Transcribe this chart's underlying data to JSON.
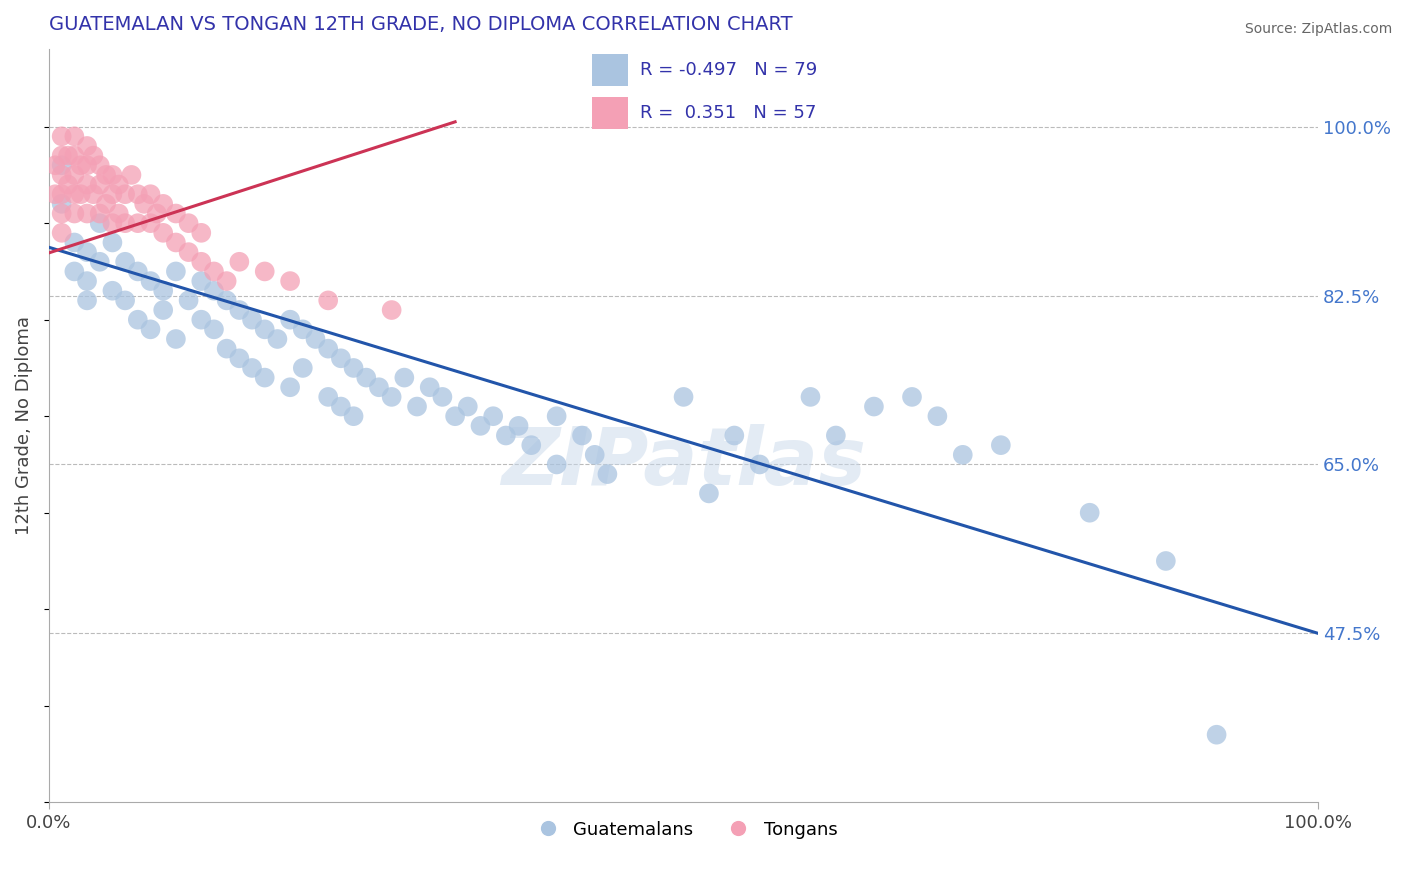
{
  "title": "GUATEMALAN VS TONGAN 12TH GRADE, NO DIPLOMA CORRELATION CHART",
  "source_text": "Source: ZipAtlas.com",
  "ylabel": "12th Grade, No Diploma",
  "y_tick_labels": [
    "47.5%",
    "65.0%",
    "82.5%",
    "100.0%"
  ],
  "y_tick_values": [
    0.475,
    0.65,
    0.825,
    1.0
  ],
  "xlim": [
    0.0,
    1.0
  ],
  "ylim": [
    0.3,
    1.08
  ],
  "blue_R": -0.497,
  "blue_N": 79,
  "pink_R": 0.351,
  "pink_N": 57,
  "blue_color": "#aac4e0",
  "pink_color": "#f4a0b5",
  "blue_line_color": "#2255aa",
  "pink_line_color": "#cc3355",
  "legend_label_blue": "Guatemalans",
  "legend_label_pink": "Tongans",
  "background_color": "#ffffff",
  "grid_color": "#bbbbbb",
  "blue_line_x0": 0.0,
  "blue_line_y0": 0.875,
  "blue_line_x1": 1.0,
  "blue_line_y1": 0.475,
  "pink_line_x0": -0.01,
  "pink_line_y0": 0.865,
  "pink_line_x1": 0.32,
  "pink_line_y1": 1.005,
  "blue_dots_x": [
    0.01,
    0.01,
    0.02,
    0.02,
    0.03,
    0.03,
    0.03,
    0.04,
    0.04,
    0.05,
    0.05,
    0.06,
    0.06,
    0.07,
    0.07,
    0.08,
    0.08,
    0.09,
    0.09,
    0.1,
    0.1,
    0.11,
    0.12,
    0.12,
    0.13,
    0.13,
    0.14,
    0.14,
    0.15,
    0.15,
    0.16,
    0.16,
    0.17,
    0.17,
    0.18,
    0.19,
    0.19,
    0.2,
    0.2,
    0.21,
    0.22,
    0.22,
    0.23,
    0.23,
    0.24,
    0.24,
    0.25,
    0.26,
    0.27,
    0.28,
    0.29,
    0.3,
    0.31,
    0.32,
    0.33,
    0.34,
    0.35,
    0.36,
    0.37,
    0.38,
    0.4,
    0.4,
    0.42,
    0.43,
    0.44,
    0.5,
    0.52,
    0.54,
    0.56,
    0.6,
    0.62,
    0.65,
    0.68,
    0.7,
    0.72,
    0.75,
    0.82,
    0.88,
    0.92
  ],
  "blue_dots_y": [
    0.96,
    0.92,
    0.88,
    0.85,
    0.87,
    0.84,
    0.82,
    0.9,
    0.86,
    0.88,
    0.83,
    0.86,
    0.82,
    0.85,
    0.8,
    0.84,
    0.79,
    0.83,
    0.81,
    0.85,
    0.78,
    0.82,
    0.84,
    0.8,
    0.83,
    0.79,
    0.82,
    0.77,
    0.81,
    0.76,
    0.8,
    0.75,
    0.79,
    0.74,
    0.78,
    0.8,
    0.73,
    0.79,
    0.75,
    0.78,
    0.77,
    0.72,
    0.76,
    0.71,
    0.75,
    0.7,
    0.74,
    0.73,
    0.72,
    0.74,
    0.71,
    0.73,
    0.72,
    0.7,
    0.71,
    0.69,
    0.7,
    0.68,
    0.69,
    0.67,
    0.7,
    0.65,
    0.68,
    0.66,
    0.64,
    0.72,
    0.62,
    0.68,
    0.65,
    0.72,
    0.68,
    0.71,
    0.72,
    0.7,
    0.66,
    0.67,
    0.6,
    0.55,
    0.37
  ],
  "pink_dots_x": [
    0.005,
    0.005,
    0.01,
    0.01,
    0.01,
    0.01,
    0.01,
    0.01,
    0.015,
    0.015,
    0.02,
    0.02,
    0.02,
    0.02,
    0.02,
    0.025,
    0.025,
    0.03,
    0.03,
    0.03,
    0.03,
    0.035,
    0.035,
    0.04,
    0.04,
    0.04,
    0.045,
    0.045,
    0.05,
    0.05,
    0.05,
    0.055,
    0.055,
    0.06,
    0.06,
    0.065,
    0.07,
    0.07,
    0.075,
    0.08,
    0.08,
    0.085,
    0.09,
    0.09,
    0.1,
    0.1,
    0.11,
    0.11,
    0.12,
    0.12,
    0.13,
    0.14,
    0.15,
    0.17,
    0.19,
    0.22,
    0.27
  ],
  "pink_dots_y": [
    0.96,
    0.93,
    0.99,
    0.97,
    0.95,
    0.93,
    0.91,
    0.89,
    0.97,
    0.94,
    0.99,
    0.97,
    0.95,
    0.93,
    0.91,
    0.96,
    0.93,
    0.98,
    0.96,
    0.94,
    0.91,
    0.97,
    0.93,
    0.96,
    0.94,
    0.91,
    0.95,
    0.92,
    0.95,
    0.93,
    0.9,
    0.94,
    0.91,
    0.93,
    0.9,
    0.95,
    0.93,
    0.9,
    0.92,
    0.93,
    0.9,
    0.91,
    0.92,
    0.89,
    0.91,
    0.88,
    0.9,
    0.87,
    0.89,
    0.86,
    0.85,
    0.84,
    0.86,
    0.85,
    0.84,
    0.82,
    0.81
  ]
}
